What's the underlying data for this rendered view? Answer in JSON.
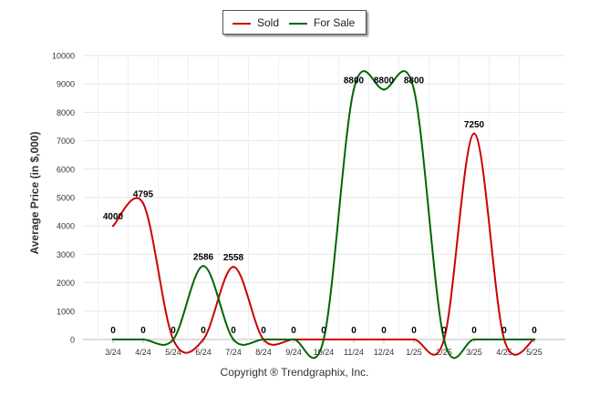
{
  "legend": {
    "sold_label": "Sold",
    "for_sale_label": "For Sale"
  },
  "footer": {
    "copyright": "Copyright ® Trendgraphix, Inc."
  },
  "chart_data": {
    "type": "line",
    "title": "",
    "ylabel": "Average Price (in $,000)",
    "xlabel": "",
    "ylim": [
      0,
      10000
    ],
    "yticks": [
      0,
      1000,
      2000,
      3000,
      4000,
      5000,
      6000,
      7000,
      8000,
      9000,
      10000
    ],
    "grid": true,
    "legend_position": "top-center",
    "categories": [
      "3/24",
      "4/24",
      "5/24",
      "6/24",
      "7/24",
      "8/24",
      "9/24",
      "10/24",
      "11/24",
      "12/24",
      "1/25",
      "2/25",
      "3/25",
      "4/25",
      "5/25"
    ],
    "series": [
      {
        "name": "Sold",
        "color": "#cc0000",
        "values": [
          4000,
          4795,
          0,
          0,
          2558,
          0,
          0,
          0,
          0,
          0,
          0,
          0,
          7250,
          0,
          0
        ]
      },
      {
        "name": "For Sale",
        "color": "#006600",
        "values": [
          0,
          0,
          0,
          2586,
          0,
          0,
          0,
          0,
          8800,
          8800,
          8800,
          0,
          0,
          0,
          0
        ]
      }
    ],
    "data_labels": [
      {
        "category": "3/24",
        "value": 4000,
        "text": "4000"
      },
      {
        "category": "4/24",
        "value": 4795,
        "text": "4795"
      },
      {
        "category": "6/24",
        "value": 2586,
        "text": "2586"
      },
      {
        "category": "7/24",
        "value": 2558,
        "text": "2558"
      },
      {
        "category": "11/24",
        "value": 8800,
        "text": "8800"
      },
      {
        "category": "12/24",
        "value": 8800,
        "text": "8800"
      },
      {
        "category": "1/25",
        "value": 8800,
        "text": "8800"
      },
      {
        "category": "3/25",
        "value": 7250,
        "text": "7250"
      },
      {
        "category": "3/24",
        "value": 0,
        "text": "0"
      },
      {
        "category": "4/24",
        "value": 0,
        "text": "0"
      },
      {
        "category": "5/24",
        "value": 0,
        "text": "0"
      },
      {
        "category": "6/24",
        "value": 0,
        "text": "0"
      },
      {
        "category": "7/24",
        "value": 0,
        "text": "0"
      },
      {
        "category": "8/24",
        "value": 0,
        "text": "0"
      },
      {
        "category": "9/24",
        "value": 0,
        "text": "0"
      },
      {
        "category": "10/24",
        "value": 0,
        "text": "0"
      },
      {
        "category": "11/24",
        "value": 0,
        "text": "0"
      },
      {
        "category": "12/24",
        "value": 0,
        "text": "0"
      },
      {
        "category": "1/25",
        "value": 0,
        "text": "0"
      },
      {
        "category": "2/25",
        "value": 0,
        "text": "0"
      },
      {
        "category": "3/25",
        "value": 0,
        "text": "0"
      },
      {
        "category": "4/25",
        "value": 0,
        "text": "0"
      },
      {
        "category": "5/25",
        "value": 0,
        "text": "0"
      }
    ]
  }
}
